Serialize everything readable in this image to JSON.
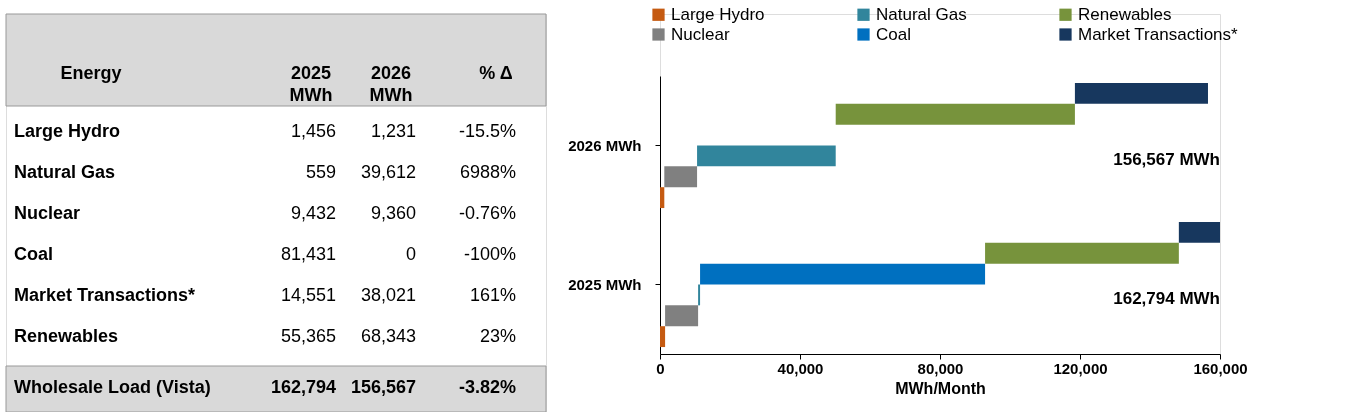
{
  "chart_data": [
    {
      "type": "other",
      "categories": [
        "Energy",
        "2025 MWh",
        "2026 MWh",
        "% Δ"
      ],
      "y_categories": [
        "Large Hydro",
        "Natural Gas",
        "Nuclear",
        "Coal",
        "Market Transactions*",
        "Renewables",
        "Wholesale Load (Vista)"
      ],
      "cell_labels": [
        [
          "1,456",
          "1,231",
          "-15.5%"
        ],
        [
          "559",
          "39,612",
          "6988%"
        ],
        [
          "9,432",
          "9,360",
          "-0.76%"
        ],
        [
          "81,431",
          "0",
          "-100%"
        ],
        [
          "14,551",
          "38,021",
          "161%"
        ],
        [
          "55,365",
          "68,343",
          "23%"
        ],
        [
          "162,794",
          "156,567",
          "-3.82%"
        ]
      ]
    },
    {
      "type": "bar",
      "orientation": "horizontal",
      "categories": [
        "2026 MWh",
        "2025 MWh"
      ],
      "series": [
        {
          "name": "Large Hydro",
          "color": "#c55a11",
          "values": [
            1231,
            1456
          ],
          "base": [
            0,
            0
          ]
        },
        {
          "name": "Nuclear",
          "color": "#808080",
          "values": [
            9360,
            9432
          ],
          "base": [
            1231,
            1456
          ]
        },
        {
          "name": "Natural Gas",
          "color": "#31859c",
          "values": [
            39612,
            559
          ],
          "base": [
            10591,
            10888
          ]
        },
        {
          "name": "Coal",
          "color": "#0070c0",
          "values": [
            null,
            81431
          ],
          "base": [
            null,
            11447
          ]
        },
        {
          "name": "Renewables",
          "color": "#77933c",
          "values": [
            68343,
            55365
          ],
          "base": [
            50203,
            92878
          ]
        },
        {
          "name": "Market Transactions*",
          "color": "#17375e",
          "values": [
            38021,
            14551
          ],
          "base": [
            118546,
            148243
          ]
        }
      ],
      "xlim": [
        0,
        160000
      ],
      "xticks": [
        0,
        {
          "value": 40000,
          "label": "40,000"
        },
        {
          "value": 80000,
          "label": "80,000"
        },
        {
          "value": 120000,
          "label": "120,000"
        },
        {
          "value": 160000,
          "label": "160,000"
        }
      ],
      "xlabel": "MWh/Month",
      "annotations": [
        "156,567 MWh",
        "162,794 MWh"
      ],
      "legend": "top",
      "grid": false
    }
  ]
}
